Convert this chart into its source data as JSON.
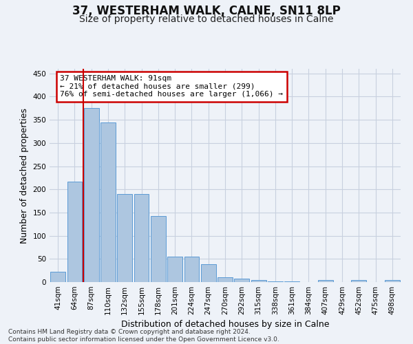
{
  "title": "37, WESTERHAM WALK, CALNE, SN11 8LP",
  "subtitle": "Size of property relative to detached houses in Calne",
  "xlabel": "Distribution of detached houses by size in Calne",
  "ylabel": "Number of detached properties",
  "categories": [
    "41sqm",
    "64sqm",
    "87sqm",
    "110sqm",
    "132sqm",
    "155sqm",
    "178sqm",
    "201sqm",
    "224sqm",
    "247sqm",
    "270sqm",
    "292sqm",
    "315sqm",
    "338sqm",
    "361sqm",
    "384sqm",
    "407sqm",
    "429sqm",
    "452sqm",
    "475sqm",
    "498sqm"
  ],
  "values": [
    22,
    217,
    375,
    345,
    190,
    190,
    142,
    55,
    55,
    38,
    11,
    8,
    5,
    2,
    2,
    0,
    4,
    0,
    4,
    0,
    4
  ],
  "bar_color": "#adc6e0",
  "bar_edgecolor": "#5b9bd5",
  "vline_color": "#cc0000",
  "annotation_text": "37 WESTERHAM WALK: 91sqm\n← 21% of detached houses are smaller (299)\n76% of semi-detached houses are larger (1,066) →",
  "annotation_box_color": "#cc0000",
  "bg_color": "#eef2f8",
  "grid_color": "#c8d0df",
  "footer": "Contains HM Land Registry data © Crown copyright and database right 2024.\nContains public sector information licensed under the Open Government Licence v3.0.",
  "ylim": [
    0,
    460
  ],
  "yticks": [
    0,
    50,
    100,
    150,
    200,
    250,
    300,
    350,
    400,
    450
  ],
  "title_fontsize": 12,
  "subtitle_fontsize": 10,
  "axis_label_fontsize": 9,
  "tick_fontsize": 7.5,
  "footer_fontsize": 6.5,
  "annot_fontsize": 8
}
